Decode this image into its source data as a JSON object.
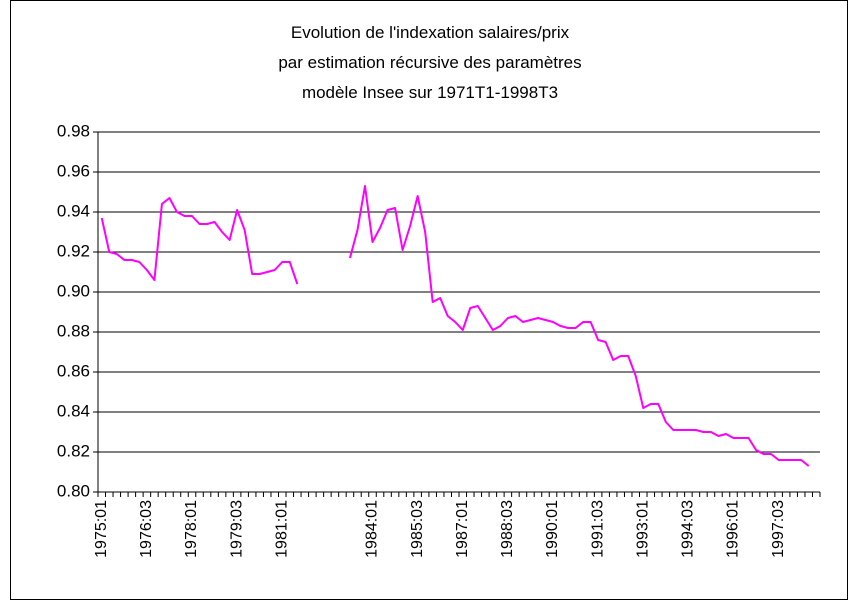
{
  "chart_data": {
    "type": "line",
    "title": [
      "Evolution de l'indexation salaires/prix",
      "par estimation récursive des paramètres",
      "modèle Insee sur 1971T1-1998T3"
    ],
    "categories": [
      "1975:01",
      null,
      null,
      null,
      null,
      null,
      "1976:03",
      null,
      null,
      null,
      null,
      null,
      "1978:01",
      null,
      null,
      null,
      null,
      null,
      "1979:03",
      null,
      null,
      null,
      null,
      null,
      "1981:01",
      null,
      null,
      null,
      null,
      null,
      null,
      null,
      null,
      null,
      null,
      null,
      "1984:01",
      null,
      null,
      null,
      null,
      null,
      "1985:03",
      null,
      null,
      null,
      null,
      null,
      "1987:01",
      null,
      null,
      null,
      null,
      null,
      "1988:03",
      null,
      null,
      null,
      null,
      null,
      "1990:01",
      null,
      null,
      null,
      null,
      null,
      "1991:03",
      null,
      null,
      null,
      null,
      null,
      "1993:01",
      null,
      null,
      null,
      null,
      null,
      "1994:03",
      null,
      null,
      null,
      null,
      null,
      "1996:01",
      null,
      null,
      null,
      null,
      null,
      "1997:03",
      null,
      null,
      null,
      null,
      null
    ],
    "values": [
      0.937,
      0.92,
      0.919,
      0.916,
      0.916,
      0.915,
      0.911,
      0.906,
      0.944,
      0.947,
      0.94,
      0.938,
      0.938,
      0.934,
      0.934,
      0.935,
      0.93,
      0.926,
      0.941,
      0.931,
      0.909,
      0.909,
      0.91,
      0.911,
      0.915,
      0.915,
      0.904,
      null,
      null,
      null,
      null,
      null,
      null,
      0.917,
      0.931,
      0.953,
      0.925,
      0.932,
      0.941,
      0.942,
      0.921,
      0.933,
      0.948,
      0.93,
      0.895,
      0.897,
      0.888,
      0.885,
      0.881,
      0.892,
      0.893,
      0.887,
      0.881,
      0.883,
      0.887,
      0.888,
      0.885,
      0.886,
      0.887,
      0.886,
      0.885,
      0.883,
      0.882,
      0.882,
      0.885,
      0.885,
      0.876,
      0.875,
      0.866,
      0.868,
      0.868,
      0.858,
      0.842,
      0.844,
      0.844,
      0.835,
      0.831,
      0.831,
      0.831,
      0.831,
      0.83,
      0.83,
      0.828,
      0.829,
      0.827,
      0.827,
      0.827,
      0.821,
      0.819,
      0.819,
      0.816,
      0.816,
      0.816,
      0.816,
      0.813,
      null
    ],
    "color": "#ff00ff",
    "ylim": [
      0.8,
      0.98
    ],
    "yticks": [
      {
        "value": 0.8,
        "label": "0.80"
      },
      0.82,
      0.84,
      0.86,
      0.88,
      {
        "value": 0.9,
        "label": "0.90"
      },
      0.92,
      0.94,
      0.96,
      0.98
    ],
    "grid": true
  }
}
